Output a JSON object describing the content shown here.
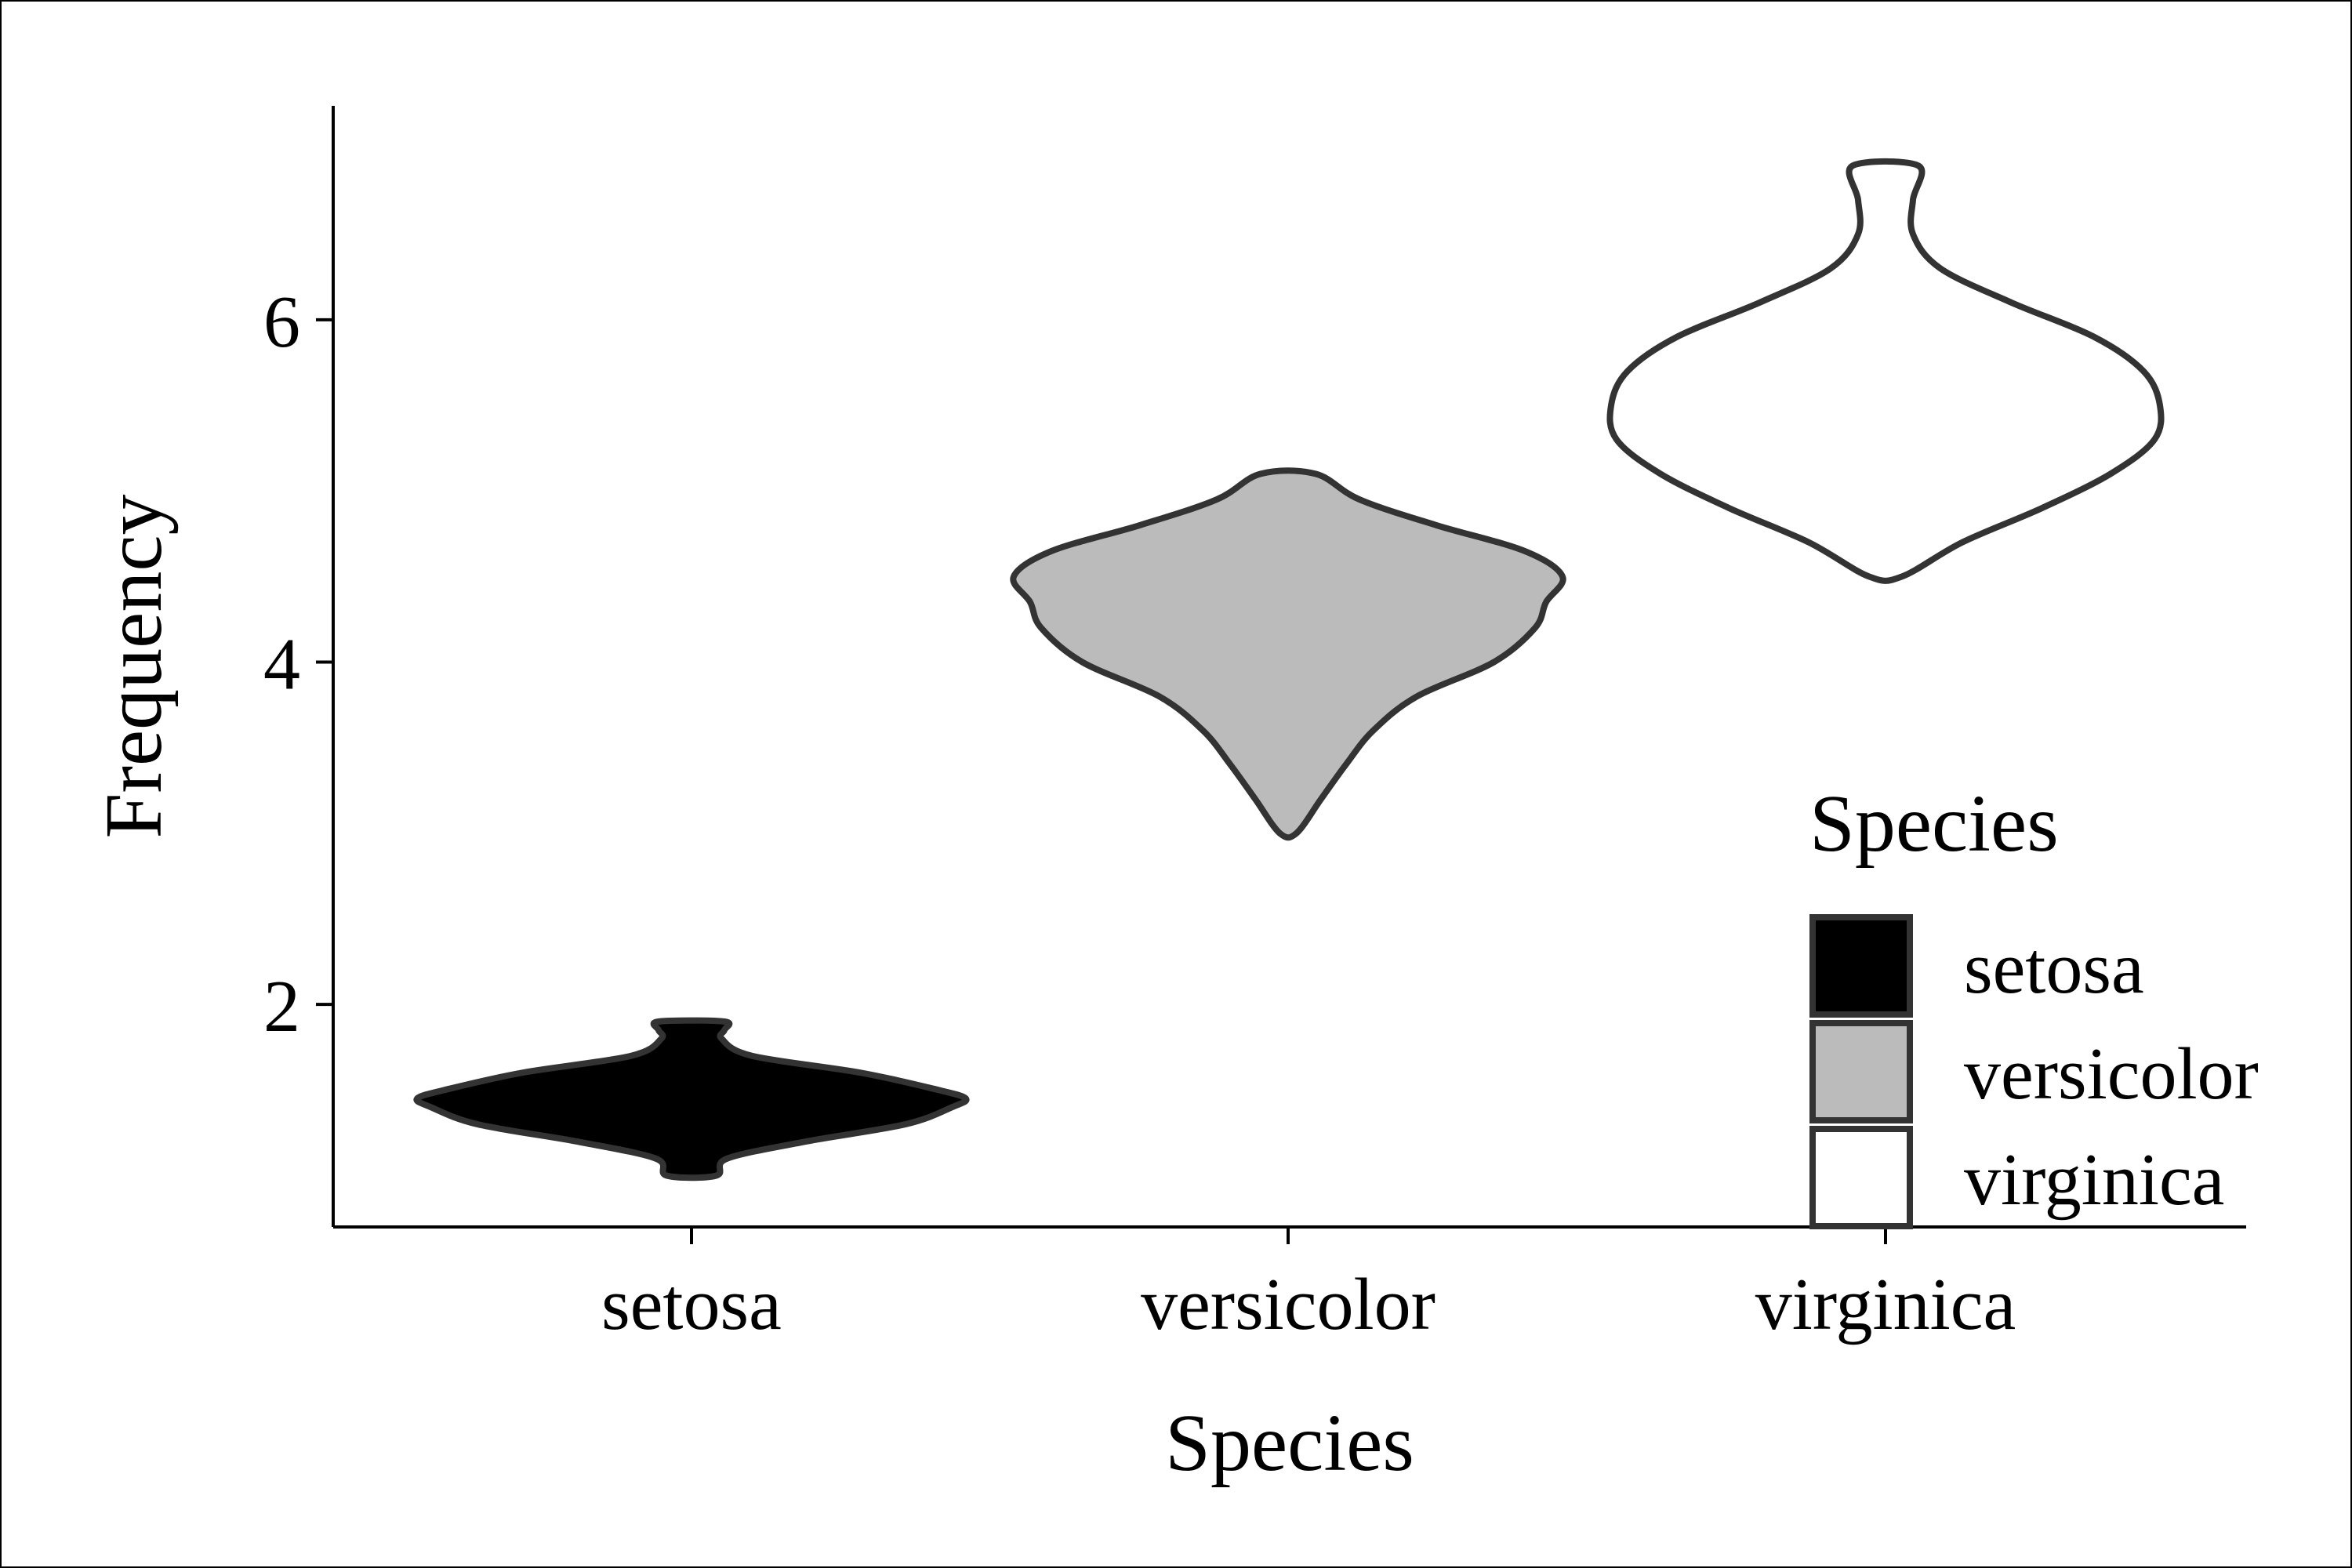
{
  "chart_data": {
    "type": "violin",
    "xlabel": "Species",
    "ylabel": "Frequency",
    "ylim": [
      0.7,
      7.25
    ],
    "yticks": [
      "2",
      "4",
      "6"
    ],
    "grid": false,
    "categories": [
      "setosa",
      "versicolor",
      "virginica"
    ],
    "legend": {
      "title": "Species",
      "placement": "bottom-right",
      "entries": [
        "setosa",
        "versicolor",
        "virginica"
      ]
    },
    "series": [
      {
        "name": "setosa",
        "fill": "#000000",
        "stroke": "#333333",
        "min": 1.0,
        "max": 1.9,
        "profile": [
          [
            1.0,
            0.09
          ],
          [
            1.1,
            0.13
          ],
          [
            1.2,
            0.42
          ],
          [
            1.3,
            0.78
          ],
          [
            1.4,
            0.95
          ],
          [
            1.45,
            1.0
          ],
          [
            1.5,
            0.9
          ],
          [
            1.6,
            0.62
          ],
          [
            1.7,
            0.22
          ],
          [
            1.8,
            0.11
          ],
          [
            1.85,
            0.12
          ],
          [
            1.9,
            0.12
          ]
        ]
      },
      {
        "name": "versicolor",
        "fill": "#bbbbbb",
        "stroke": "#333333",
        "min": 3.0,
        "max": 5.1,
        "profile": [
          [
            3.0,
            0.03
          ],
          [
            3.2,
            0.12
          ],
          [
            3.4,
            0.21
          ],
          [
            3.6,
            0.31
          ],
          [
            3.8,
            0.47
          ],
          [
            4.0,
            0.75
          ],
          [
            4.2,
            0.9
          ],
          [
            4.35,
            0.94
          ],
          [
            4.5,
            1.0
          ],
          [
            4.65,
            0.86
          ],
          [
            4.8,
            0.54
          ],
          [
            4.95,
            0.26
          ],
          [
            5.1,
            0.1
          ]
        ]
      },
      {
        "name": "virginica",
        "fill": "#ffffff",
        "stroke": "#333333",
        "min": 4.5,
        "max": 6.9,
        "profile": [
          [
            4.5,
            0.06
          ],
          [
            4.7,
            0.28
          ],
          [
            4.9,
            0.57
          ],
          [
            5.1,
            0.82
          ],
          [
            5.3,
            0.98
          ],
          [
            5.5,
            1.0
          ],
          [
            5.7,
            0.94
          ],
          [
            5.9,
            0.76
          ],
          [
            6.1,
            0.46
          ],
          [
            6.3,
            0.2
          ],
          [
            6.5,
            0.1
          ],
          [
            6.7,
            0.1
          ],
          [
            6.9,
            0.12
          ]
        ]
      }
    ]
  }
}
